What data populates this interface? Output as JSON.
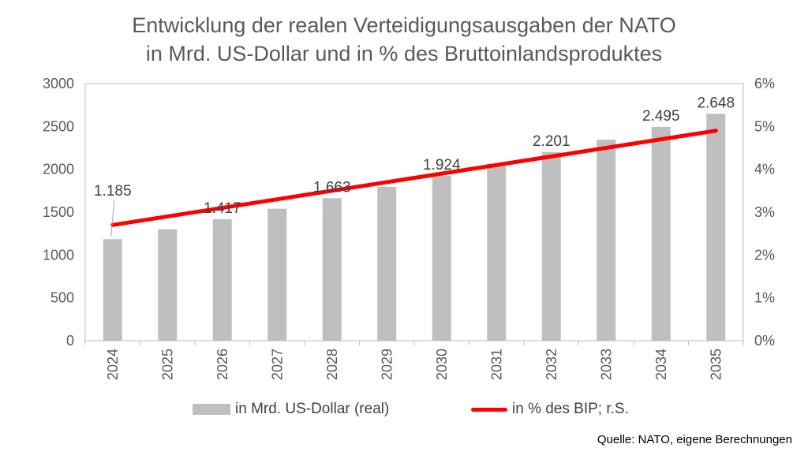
{
  "title_line1": "Entwicklung der realen Verteidigungsausgaben der NATO",
  "title_line2": "in Mrd. US-Dollar und in % des Bruttoinlandsproduktes",
  "source": "Quelle: NATO, eigene Berechnungen",
  "legend": {
    "bar": "in Mrd. US-Dollar (real)",
    "line": "in % des BIP; r.S."
  },
  "colors": {
    "bar": "#bfbfbf",
    "line": "#ff0000",
    "axis": "#bfbfbf",
    "text": "#595959"
  },
  "chart_data": {
    "type": "bar",
    "categories": [
      "2024",
      "2025",
      "2026",
      "2027",
      "2028",
      "2029",
      "2030",
      "2031",
      "2032",
      "2033",
      "2034",
      "2035"
    ],
    "series": [
      {
        "name": "in Mrd. US-Dollar (real)",
        "type": "bar",
        "axis": "left",
        "values": [
          1185,
          1300,
          1417,
          1540,
          1663,
          1795,
          1924,
          2065,
          2201,
          2345,
          2495,
          2648
        ],
        "data_labels": [
          "1.185",
          null,
          "1.417",
          null,
          "1.663",
          null,
          "1.924",
          null,
          "2.201",
          null,
          "2.495",
          "2.648"
        ]
      },
      {
        "name": "in % des BIP; r.S.",
        "type": "line",
        "axis": "right",
        "values": [
          2.7,
          2.9,
          3.1,
          3.3,
          3.5,
          3.7,
          3.9,
          4.1,
          4.3,
          4.5,
          4.7,
          4.9
        ]
      }
    ],
    "y_left": {
      "ylim": [
        0,
        3000
      ],
      "ticks": [
        "0",
        "500",
        "1000",
        "1500",
        "2000",
        "2500",
        "3000"
      ]
    },
    "y_right": {
      "ylim": [
        0,
        6
      ],
      "ticks": [
        "0%",
        "1%",
        "2%",
        "3%",
        "4%",
        "5%",
        "6%"
      ]
    },
    "grid": false,
    "legend_position": "bottom"
  }
}
